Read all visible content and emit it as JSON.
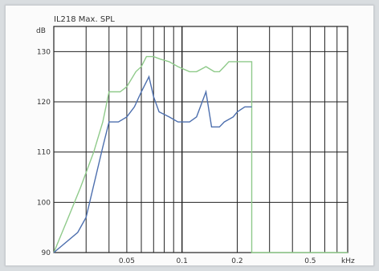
{
  "chart_data": {
    "type": "line",
    "title": "IL218 Max. SPL",
    "ylabel": "dB",
    "xlabel_unit": "kHz",
    "x_scale": "log",
    "xlim": [
      0.02,
      0.8
    ],
    "ylim": [
      90,
      135
    ],
    "y_ticks": [
      90,
      100,
      110,
      120,
      130
    ],
    "y_tick_labels": [
      "90",
      "100",
      "110",
      "120",
      "130"
    ],
    "x_tick_labels": [
      {
        "x": 0.05,
        "label": "0.05"
      },
      {
        "x": 0.1,
        "label": "0.1"
      },
      {
        "x": 0.2,
        "label": "0.2"
      },
      {
        "x": 0.5,
        "label": "0.5"
      }
    ],
    "grid": true,
    "series": [
      {
        "color": "#8fca8a",
        "points": [
          [
            0.02,
            90
          ],
          [
            0.024,
            97
          ],
          [
            0.028,
            103
          ],
          [
            0.033,
            110
          ],
          [
            0.037,
            116
          ],
          [
            0.04,
            122
          ],
          [
            0.046,
            122
          ],
          [
            0.05,
            123
          ],
          [
            0.056,
            126
          ],
          [
            0.06,
            127
          ],
          [
            0.064,
            129
          ],
          [
            0.07,
            129
          ],
          [
            0.076,
            128.5
          ],
          [
            0.085,
            128
          ],
          [
            0.095,
            127
          ],
          [
            0.11,
            126
          ],
          [
            0.12,
            126
          ],
          [
            0.135,
            127
          ],
          [
            0.15,
            126
          ],
          [
            0.16,
            126
          ],
          [
            0.17,
            127
          ],
          [
            0.18,
            128
          ],
          [
            0.2,
            128
          ],
          [
            0.22,
            128
          ],
          [
            0.24,
            128
          ],
          [
            0.24,
            90
          ],
          [
            0.8,
            90
          ]
        ]
      },
      {
        "color": "#4d6fae",
        "points": [
          [
            0.02,
            90
          ],
          [
            0.027,
            94
          ],
          [
            0.03,
            97
          ],
          [
            0.037,
            111
          ],
          [
            0.04,
            116
          ],
          [
            0.045,
            116
          ],
          [
            0.05,
            117
          ],
          [
            0.055,
            119
          ],
          [
            0.06,
            122
          ],
          [
            0.066,
            125
          ],
          [
            0.07,
            121
          ],
          [
            0.075,
            118
          ],
          [
            0.085,
            117
          ],
          [
            0.095,
            116
          ],
          [
            0.11,
            116
          ],
          [
            0.12,
            117
          ],
          [
            0.135,
            122
          ],
          [
            0.145,
            115
          ],
          [
            0.16,
            115
          ],
          [
            0.17,
            116
          ],
          [
            0.19,
            117
          ],
          [
            0.2,
            118
          ],
          [
            0.22,
            119
          ],
          [
            0.24,
            119
          ]
        ]
      }
    ]
  }
}
